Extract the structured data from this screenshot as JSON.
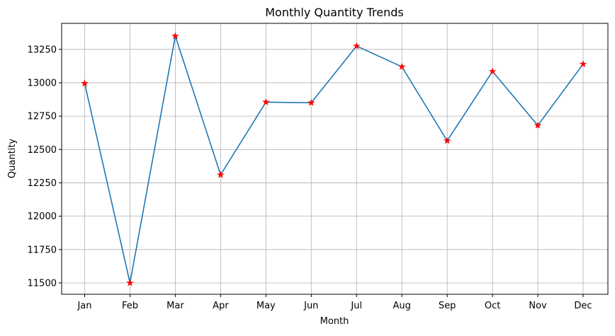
{
  "chart_data": {
    "type": "line",
    "title": "Monthly Quantity Trends",
    "xlabel": "Month",
    "ylabel": "Quantity",
    "categories": [
      "Jan",
      "Feb",
      "Mar",
      "Apr",
      "May",
      "Jun",
      "Jul",
      "Aug",
      "Sep",
      "Oct",
      "Nov",
      "Dec"
    ],
    "values": [
      12995,
      11500,
      13350,
      12310,
      12855,
      12850,
      13275,
      13120,
      12565,
      13085,
      12680,
      13140
    ],
    "ylim": [
      11415,
      13445
    ],
    "yticks": [
      11500,
      11750,
      12000,
      12250,
      12500,
      12750,
      13000,
      13250
    ],
    "grid": true,
    "line_color": "#1f77b4",
    "marker": "star",
    "marker_color": "#ff0000"
  }
}
